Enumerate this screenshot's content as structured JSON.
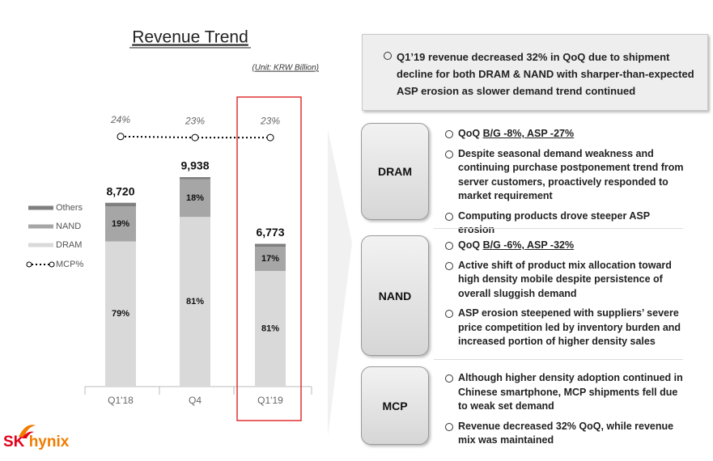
{
  "chart_data": {
    "type": "bar",
    "stacked": true,
    "title": "Revenue Trend",
    "unit": "(Unit: KRW Billion)",
    "categories": [
      "Q1'18",
      "Q4",
      "Q1'19"
    ],
    "series": [
      {
        "name": "Others",
        "color": "#7f7f7f",
        "values": [
          2,
          1,
          2
        ]
      },
      {
        "name": "NAND",
        "color": "#a6a6a6",
        "values": [
          19,
          18,
          17
        ],
        "value_labels": [
          "19%",
          "18%",
          "17%"
        ]
      },
      {
        "name": "DRAM",
        "color": "#d9d9d9",
        "values": [
          79,
          81,
          81
        ],
        "value_labels": [
          "79%",
          "81%",
          "81%"
        ]
      }
    ],
    "totals": {
      "values": [
        8720,
        9938,
        6773
      ],
      "value_labels": [
        "8,720",
        "9,938",
        "6,773"
      ]
    },
    "line_series": {
      "name": "MCP%",
      "color": "#000000",
      "values": [
        24,
        23,
        23
      ],
      "value_labels": [
        "24%",
        "23%",
        "23%"
      ]
    },
    "highlight_category": 2,
    "highlight_color": "#e03030"
  },
  "summary": "Q1’19 revenue decreased 32% in QoQ due to shipment decline for both DRAM & NAND with sharper-than-expected ASP erosion as slower demand trend continued",
  "sections": [
    {
      "label": "DRAM",
      "bullets": [
        {
          "text": "QoQ ",
          "underlined": "B/G -8%, ASP -27%"
        },
        {
          "text": "Despite seasonal demand weakness and continuing purchase postponement trend from server customers, proactively responded to market requirement"
        },
        {
          "text": "Computing products drove steeper ASP erosion"
        }
      ]
    },
    {
      "label": "NAND",
      "bullets": [
        {
          "text": "QoQ ",
          "underlined": "B/G -6%, ASP -32%"
        },
        {
          "text": "Active shift of product mix allocation toward high density mobile despite persistence of overall sluggish demand"
        },
        {
          "text": "ASP erosion steepened with suppliers’ severe price competition led by inventory burden and increased portion of higher density sales"
        }
      ]
    },
    {
      "label": "MCP",
      "bullets": [
        {
          "text": "Although higher density adoption continued in Chinese smartphone, MCP shipments fell due to weak set demand"
        },
        {
          "text": "Revenue decreased 32% QoQ, while revenue mix was maintained"
        }
      ]
    }
  ],
  "logo": {
    "brand": "SK",
    "name": "hynix"
  }
}
